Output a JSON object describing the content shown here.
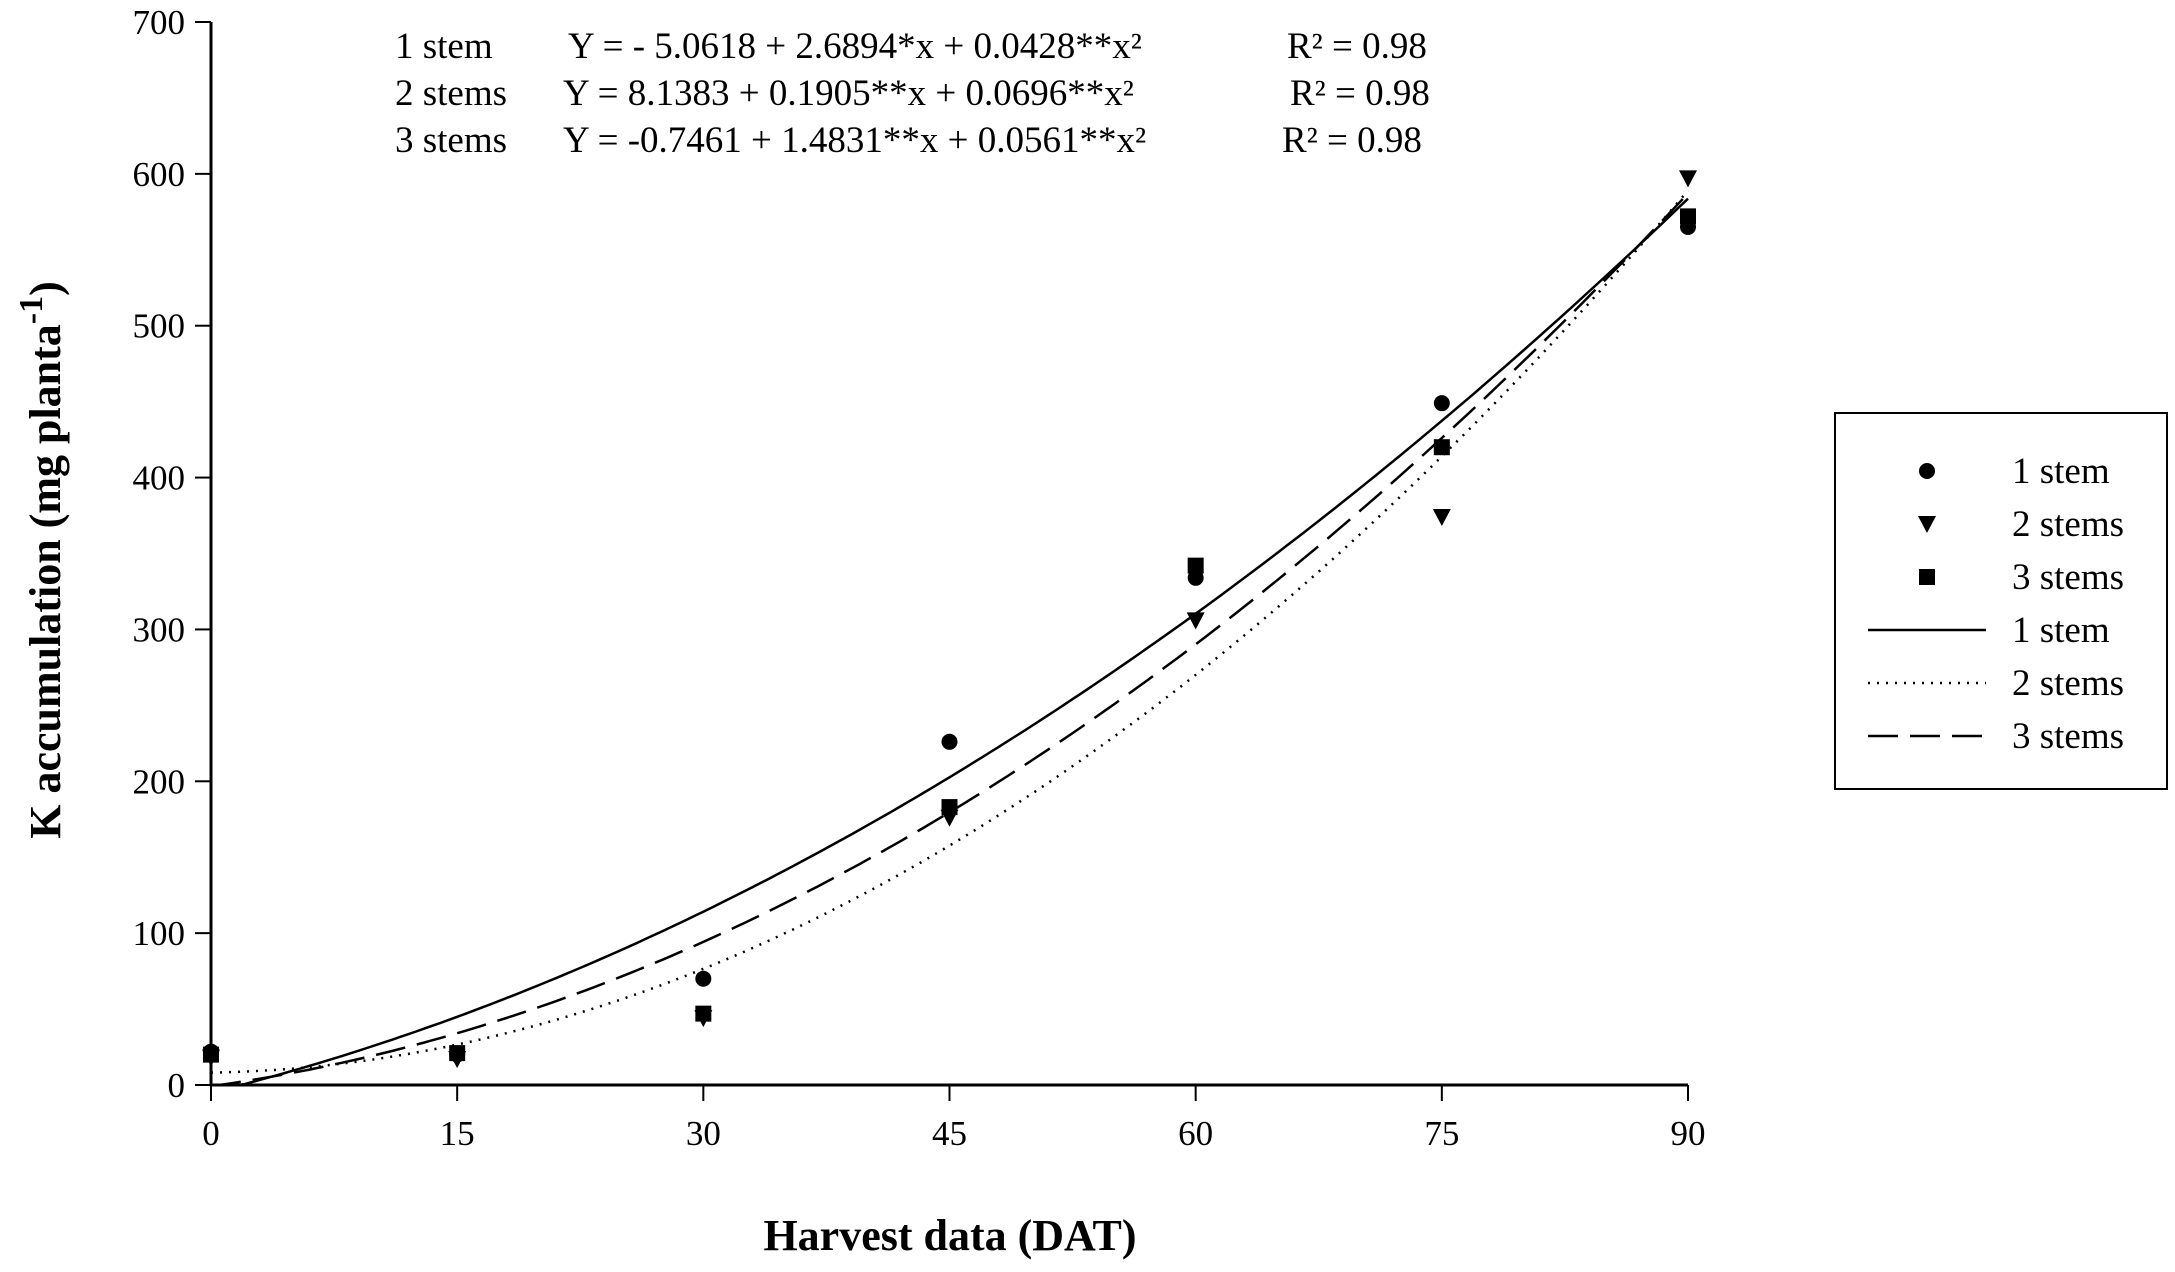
{
  "chart_data": {
    "type": "scatter",
    "xlabel": "Harvest data (DAT)",
    "ylabel": "K accumulation (mg planta",
    "ylabel_superscript": "-1",
    "ylabel_close": ")",
    "xlim": [
      0,
      90
    ],
    "ylim": [
      0,
      700
    ],
    "xticks": [
      "0",
      "15",
      "30",
      "45",
      "60",
      "75",
      "90"
    ],
    "yticks": [
      "0",
      "100",
      "200",
      "300",
      "400",
      "500",
      "600",
      "700"
    ],
    "grid": false,
    "legend_position": "right",
    "x": [
      0,
      15,
      30,
      45,
      60,
      75,
      90
    ],
    "series": [
      {
        "name": "1 stem",
        "marker": "circle",
        "values": [
          22,
          20,
          70,
          226,
          334,
          449,
          565
        ]
      },
      {
        "name": "2 stems",
        "marker": "triangle-down",
        "values": [
          18,
          17,
          44,
          176,
          306,
          374,
          597
        ]
      },
      {
        "name": "3 stems",
        "marker": "square",
        "values": [
          20,
          21,
          47,
          183,
          342,
          420,
          572
        ]
      }
    ],
    "fits": [
      {
        "name": "1 stem",
        "style": "solid",
        "coef": [
          -5.0618,
          2.6894,
          0.0428
        ],
        "equation_label": "1 stem",
        "equation": "Y = - 5.0618 + 2.6894*x + 0.0428**x²",
        "r2": "R² = 0.98"
      },
      {
        "name": "2 stems",
        "style": "dotted",
        "coef": [
          8.1383,
          0.1905,
          0.0696
        ],
        "equation_label": "2 stems",
        "equation": "Y = 8.1383 + 0.1905**x + 0.0696**x²",
        "r2": "R² = 0.98"
      },
      {
        "name": "3 stems",
        "style": "dashed",
        "coef": [
          -0.7461,
          1.4831,
          0.0561
        ],
        "equation_label": "3 stems",
        "equation": "Y = -0.7461 + 1.4831**x + 0.0561**x²",
        "r2": "R² = 0.98"
      }
    ]
  }
}
